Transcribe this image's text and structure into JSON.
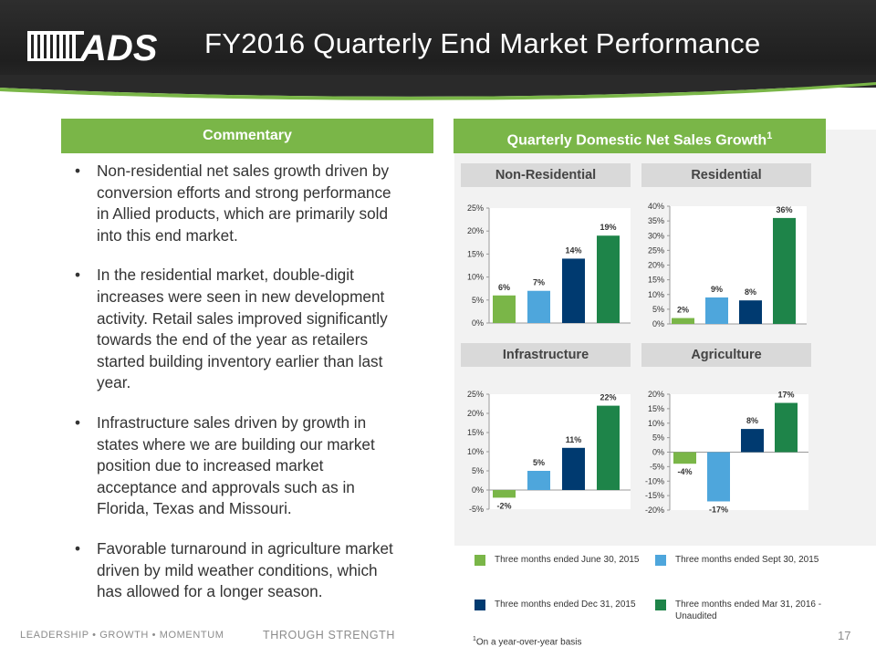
{
  "header": {
    "logo_text": "ADS",
    "title": "FY2016 Quarterly End Market Performance"
  },
  "commentary": {
    "heading": "Commentary",
    "bullets": [
      "Non-residential net sales growth driven by conversion efforts and strong performance in Allied products, which are primarily sold into this end market.",
      "In the residential market, double-digit increases were seen in new development activity.  Retail sales improved significantly towards the end of the year as retailers started building inventory earlier than last year.",
      "Infrastructure sales driven by growth in states where we are building our market position due to increased market acceptance and approvals such as in Florida, Texas and Missouri.",
      "Favorable turnaround in agriculture market driven by mild weather conditions, which has allowed for a longer season."
    ]
  },
  "charts_section": {
    "heading": "Quarterly Domestic Net Sales Growth",
    "heading_superscript": "1"
  },
  "colors": {
    "q1": "#7ab648",
    "q2": "#4ea6dc",
    "q3": "#003a70",
    "q4": "#1e8449",
    "header_green": "#7ab648"
  },
  "chart_data": [
    {
      "type": "bar",
      "title": "Non-Residential",
      "categories": [
        "Three months ended June 30, 2015",
        "Three months ended Sept 30, 2015",
        "Three months ended Dec 31, 2015",
        "Three months ended Mar 31, 2016 - Unaudited"
      ],
      "values": [
        6,
        7,
        14,
        19
      ],
      "data_labels": [
        "6%",
        "7%",
        "14%",
        "19%"
      ],
      "ylim": [
        0,
        25
      ],
      "ticks": [
        0,
        5,
        10,
        15,
        20,
        25
      ],
      "tick_labels": [
        "0%",
        "5%",
        "10%",
        "15%",
        "20%",
        "25%"
      ]
    },
    {
      "type": "bar",
      "title": "Residential",
      "categories": [
        "Three months ended June 30, 2015",
        "Three months ended Sept 30, 2015",
        "Three months ended Dec 31, 2015",
        "Three months ended Mar 31, 2016 - Unaudited"
      ],
      "values": [
        2,
        9,
        8,
        36
      ],
      "data_labels": [
        "2%",
        "9%",
        "8%",
        "36%"
      ],
      "ylim": [
        0,
        40
      ],
      "ticks": [
        0,
        5,
        10,
        15,
        20,
        25,
        30,
        35,
        40
      ],
      "tick_labels": [
        "0%",
        "5%",
        "10%",
        "15%",
        "20%",
        "25%",
        "30%",
        "35%",
        "40%"
      ]
    },
    {
      "type": "bar",
      "title": "Infrastructure",
      "categories": [
        "Three months ended June 30, 2015",
        "Three months ended Sept 30, 2015",
        "Three months ended Dec 31, 2015",
        "Three months ended Mar 31, 2016 - Unaudited"
      ],
      "values": [
        -2,
        5,
        11,
        22
      ],
      "data_labels": [
        "-2%",
        "5%",
        "11%",
        "22%"
      ],
      "ylim": [
        -5,
        25
      ],
      "ticks": [
        -5,
        0,
        5,
        10,
        15,
        20,
        25
      ],
      "tick_labels": [
        "-5%",
        "0%",
        "5%",
        "10%",
        "15%",
        "20%",
        "25%"
      ]
    },
    {
      "type": "bar",
      "title": "Agriculture",
      "categories": [
        "Three months ended June 30, 2015",
        "Three months ended Sept 30, 2015",
        "Three months ended Dec 31, 2015",
        "Three months ended Mar 31, 2016 - Unaudited"
      ],
      "values": [
        -4,
        -17,
        8,
        17
      ],
      "data_labels": [
        "-4%",
        "-17%",
        "8%",
        "17%"
      ],
      "ylim": [
        -20,
        20
      ],
      "ticks": [
        -20,
        -15,
        -10,
        -5,
        0,
        5,
        10,
        15,
        20
      ],
      "tick_labels": [
        "-20%",
        "-15%",
        "-10%",
        "-5%",
        "0%",
        "5%",
        "10%",
        "15%",
        "20%"
      ]
    }
  ],
  "legend": [
    {
      "label": "Three months ended June 30, 2015",
      "color": "#7ab648"
    },
    {
      "label": "Three months ended Sept 30, 2015",
      "color": "#4ea6dc"
    },
    {
      "label": "Three months ended Dec 31, 2015",
      "color": "#003a70"
    },
    {
      "label": "Three months ended Mar 31, 2016 - Unaudited",
      "color": "#1e8449"
    }
  ],
  "footnote": {
    "marker": "1",
    "text": "On a year-over-year basis"
  },
  "footer": {
    "tagline": "LEADERSHIP • GROWTH • MOMENTUM",
    "slogan": "THROUGH STRENGTH",
    "page_number": "17"
  }
}
